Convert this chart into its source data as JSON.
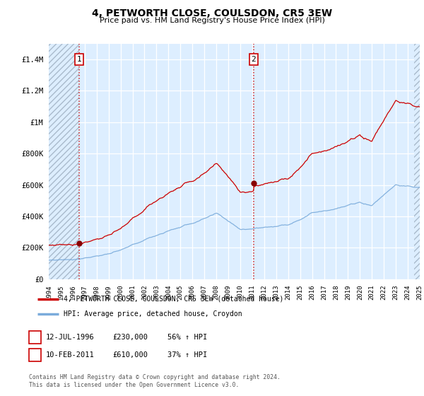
{
  "title": "4, PETWORTH CLOSE, COULSDON, CR5 3EW",
  "subtitle": "Price paid vs. HM Land Registry's House Price Index (HPI)",
  "ylabel_ticks": [
    "£0",
    "£200K",
    "£400K",
    "£600K",
    "£800K",
    "£1M",
    "£1.2M",
    "£1.4M"
  ],
  "ylim": [
    0,
    1500000
  ],
  "yticks": [
    0,
    200000,
    400000,
    600000,
    800000,
    1000000,
    1200000,
    1400000
  ],
  "xmin_year": 1994,
  "xmax_year": 2025,
  "purchase1_year": 1996.53,
  "purchase1_price": 230000,
  "purchase2_year": 2011.11,
  "purchase2_price": 610000,
  "line_color_property": "#cc0000",
  "line_color_hpi": "#7aabdb",
  "legend_property": "4, PETWORTH CLOSE, COULSDON, CR5 3EW (detached house)",
  "legend_hpi": "HPI: Average price, detached house, Croydon",
  "footnote": "Contains HM Land Registry data © Crown copyright and database right 2024.\nThis data is licensed under the Open Government Licence v3.0.",
  "background_plot": "#ddeeff",
  "xtick_years": [
    1994,
    1995,
    1996,
    1997,
    1998,
    1999,
    2000,
    2001,
    2002,
    2003,
    2004,
    2005,
    2006,
    2007,
    2008,
    2009,
    2010,
    2011,
    2012,
    2013,
    2014,
    2015,
    2016,
    2017,
    2018,
    2019,
    2020,
    2021,
    2022,
    2023,
    2024,
    2025
  ]
}
